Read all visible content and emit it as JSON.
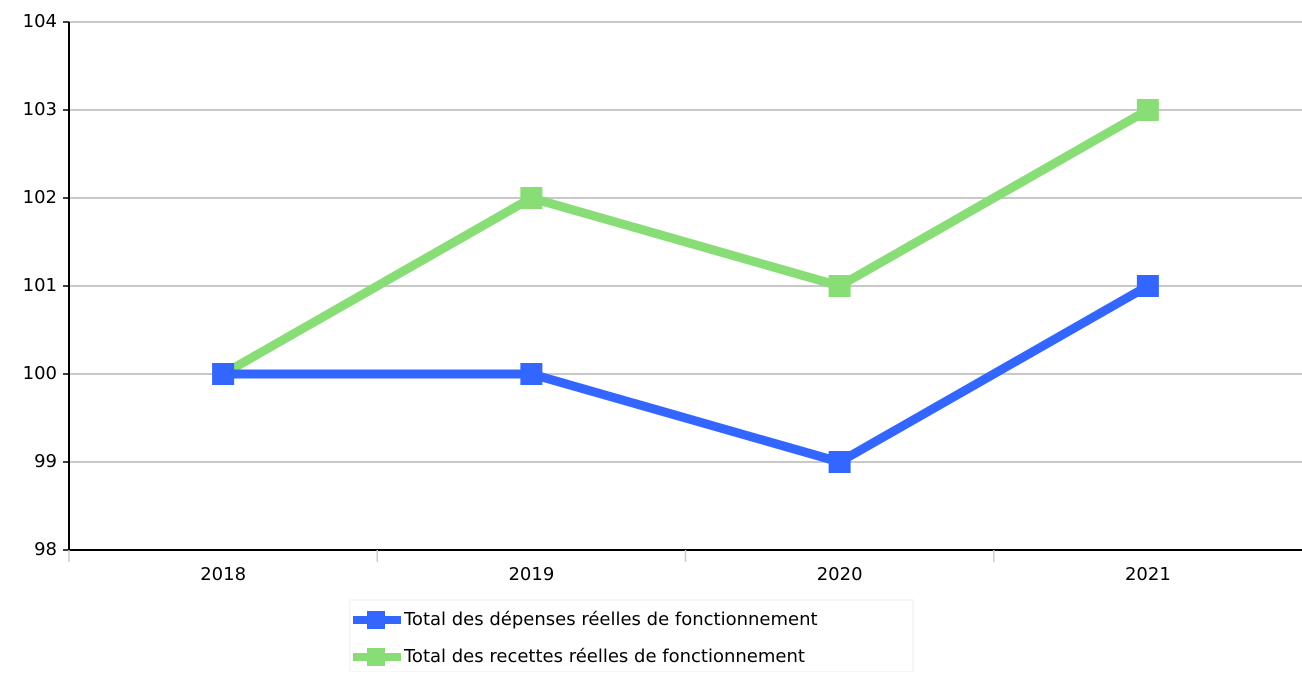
{
  "chart_data": {
    "type": "line",
    "categories": [
      "2018",
      "2019",
      "2020",
      "2021"
    ],
    "series": [
      {
        "name": "Total des dépenses réelles de fonctionnement",
        "color": "#3366ff",
        "values": [
          100,
          100,
          99,
          101
        ]
      },
      {
        "name": "Total des recettes réelles de fonctionnement",
        "color": "#88dd77",
        "values": [
          100,
          102,
          101,
          103
        ]
      }
    ],
    "ylim": [
      98,
      104
    ],
    "yticks": [
      98,
      99,
      100,
      101,
      102,
      103,
      104
    ],
    "grid": true,
    "legend": "bottom"
  }
}
